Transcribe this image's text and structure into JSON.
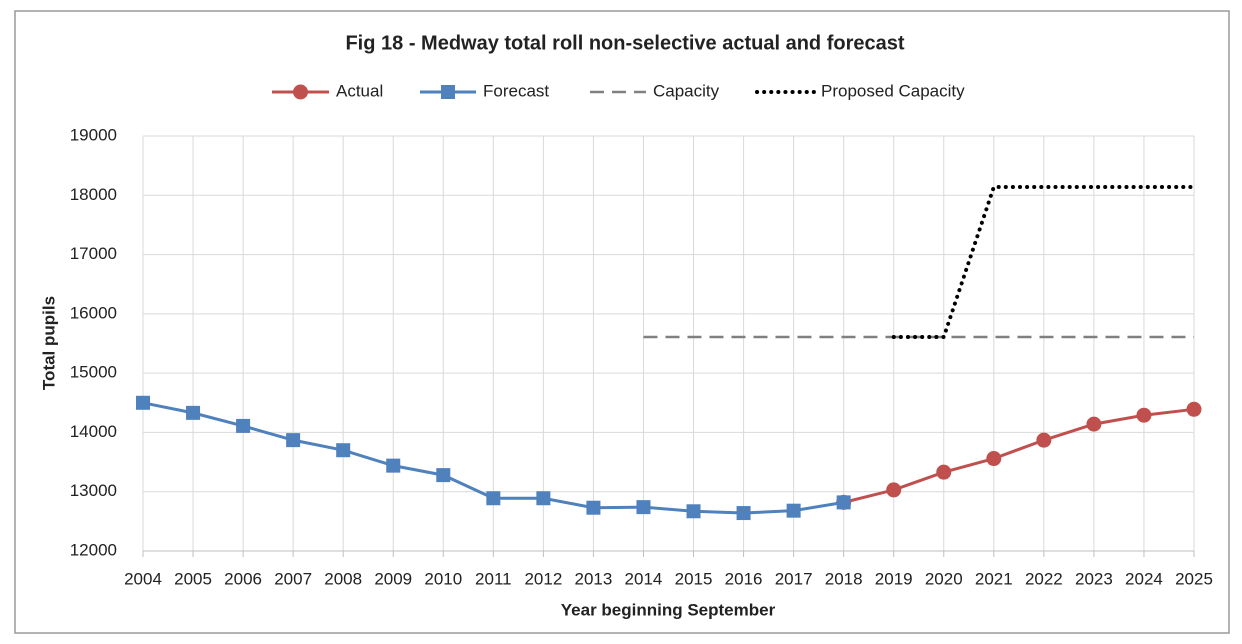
{
  "chart_data": {
    "type": "line",
    "title": "Fig 18 - Medway total roll non-selective actual and forecast",
    "x_label": "Year beginning September",
    "y_label": "Total pupils",
    "categories": [
      "2004",
      "2005",
      "2006",
      "2007",
      "2008",
      "2009",
      "2010",
      "2011",
      "2012",
      "2013",
      "2014",
      "2015",
      "2016",
      "2017",
      "2018",
      "2019",
      "2020",
      "2021",
      "2022",
      "2023",
      "2024",
      "2025"
    ],
    "series": [
      {
        "name": "Actual",
        "color": "#c0504d",
        "style": "solid",
        "marker": "circle",
        "values": [
          null,
          null,
          null,
          null,
          null,
          null,
          null,
          null,
          null,
          null,
          null,
          null,
          null,
          null,
          12820,
          13030,
          13330,
          13560,
          13870,
          14140,
          14290,
          14390
        ]
      },
      {
        "name": "Forecast",
        "color": "#4f81bd",
        "style": "solid",
        "marker": "square",
        "values": [
          14500,
          14330,
          14110,
          13870,
          13700,
          13440,
          13280,
          12890,
          12890,
          12730,
          12740,
          12670,
          12640,
          12680,
          12820,
          null,
          null,
          null,
          null,
          null,
          null,
          null
        ]
      },
      {
        "name": "Capacity",
        "color": "#808080",
        "style": "dashed",
        "marker": "none",
        "values": [
          null,
          null,
          null,
          null,
          null,
          null,
          null,
          null,
          null,
          null,
          15610,
          15610,
          15610,
          15610,
          15610,
          15610,
          15610,
          15610,
          15610,
          15610,
          15610,
          15610
        ]
      },
      {
        "name": "Proposed Capacity",
        "color": "#000000",
        "style": "dotted",
        "marker": "none",
        "values": [
          null,
          null,
          null,
          null,
          null,
          null,
          null,
          null,
          null,
          null,
          null,
          null,
          null,
          null,
          null,
          15610,
          15610,
          18140,
          18140,
          18140,
          18140,
          18140
        ]
      }
    ],
    "ylim": [
      12000,
      19000
    ],
    "yticks": [
      12000,
      13000,
      14000,
      15000,
      16000,
      17000,
      18000,
      19000
    ],
    "grid": true,
    "legend": "top"
  }
}
